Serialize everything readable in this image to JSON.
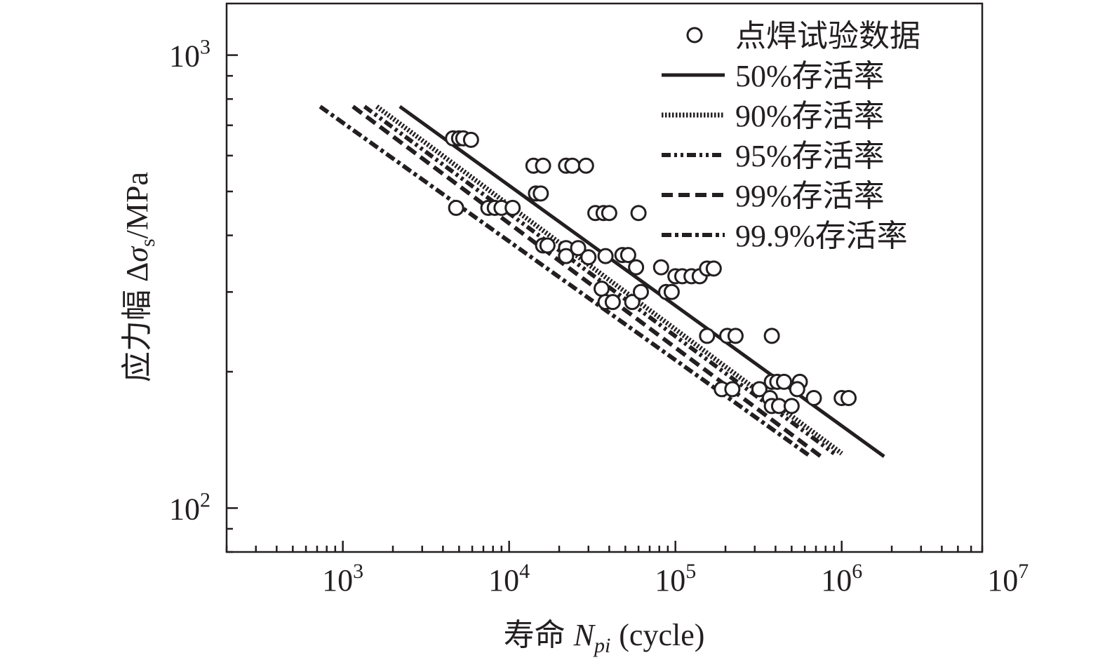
{
  "chart_data": {
    "type": "scatter",
    "xlabel": "寿命",
    "xlabel_var": "N",
    "xlabel_sub": "pi",
    "xlabel_unit": "(cycle)",
    "ylabel_prefix": "应力幅 Δ",
    "ylabel_sigma": "σ",
    "ylabel_sub": "s",
    "ylabel_unit": "/MPa",
    "x_scale": "log",
    "y_scale": "log",
    "xlim": [
      200,
      7000000
    ],
    "ylim": [
      80,
      1300
    ],
    "x_ticks": [
      {
        "value": 1000,
        "base": "10",
        "exp": "3"
      },
      {
        "value": 10000,
        "base": "10",
        "exp": "4"
      },
      {
        "value": 100000,
        "base": "10",
        "exp": "5"
      },
      {
        "value": 1000000,
        "base": "10",
        "exp": "6"
      },
      {
        "value": 10000000,
        "base": "10",
        "exp": "7"
      }
    ],
    "y_ticks": [
      {
        "value": 100,
        "base": "10",
        "exp": "2"
      },
      {
        "value": 1000,
        "base": "10",
        "exp": "3"
      }
    ],
    "grid": false,
    "legend_position": "top-right",
    "scatter_series": {
      "name": "点焊试验数据",
      "points": [
        [
          4600,
          655
        ],
        [
          5000,
          655
        ],
        [
          5300,
          655
        ],
        [
          5900,
          650
        ],
        [
          4800,
          460
        ],
        [
          7500,
          460
        ],
        [
          8200,
          460
        ],
        [
          9000,
          460
        ],
        [
          10500,
          460
        ],
        [
          14000,
          570
        ],
        [
          16000,
          570
        ],
        [
          22000,
          570
        ],
        [
          24000,
          570
        ],
        [
          29000,
          570
        ],
        [
          14500,
          495
        ],
        [
          15500,
          495
        ],
        [
          16000,
          380
        ],
        [
          17000,
          380
        ],
        [
          22000,
          375
        ],
        [
          26000,
          375
        ],
        [
          22000,
          360
        ],
        [
          30000,
          358
        ],
        [
          33000,
          448
        ],
        [
          37000,
          448
        ],
        [
          40000,
          448
        ],
        [
          60000,
          448
        ],
        [
          38000,
          360
        ],
        [
          48000,
          362
        ],
        [
          52000,
          362
        ],
        [
          58000,
          340
        ],
        [
          36000,
          305
        ],
        [
          38000,
          285
        ],
        [
          42000,
          285
        ],
        [
          55000,
          285
        ],
        [
          62000,
          300
        ],
        [
          82000,
          340
        ],
        [
          88000,
          300
        ],
        [
          95000,
          300
        ],
        [
          100000,
          325
        ],
        [
          110000,
          325
        ],
        [
          125000,
          325
        ],
        [
          140000,
          325
        ],
        [
          155000,
          338
        ],
        [
          170000,
          338
        ],
        [
          155000,
          240
        ],
        [
          205000,
          240
        ],
        [
          230000,
          240
        ],
        [
          380000,
          240
        ],
        [
          190000,
          183
        ],
        [
          220000,
          183
        ],
        [
          320000,
          183
        ],
        [
          370000,
          175
        ],
        [
          380000,
          190
        ],
        [
          410000,
          190
        ],
        [
          450000,
          190
        ],
        [
          560000,
          190
        ],
        [
          540000,
          183
        ],
        [
          380000,
          168
        ],
        [
          420000,
          168
        ],
        [
          500000,
          168
        ],
        [
          680000,
          175
        ],
        [
          1000000,
          175
        ],
        [
          1100000,
          175
        ]
      ]
    },
    "line_series": [
      {
        "name": "50%存活率",
        "style": "solid",
        "x": [
          2200,
          1800000
        ],
        "y": [
          770,
          130
        ]
      },
      {
        "name": "90%存活率",
        "style": "dotted",
        "x": [
          1600,
          1000000
        ],
        "y": [
          770,
          132
        ]
      },
      {
        "name": "95%存活率",
        "style": "dashdotdot",
        "x": [
          1350,
          900000
        ],
        "y": [
          770,
          132
        ]
      },
      {
        "name": "99%存活率",
        "style": "dashed",
        "x": [
          1150,
          750000
        ],
        "y": [
          770,
          130
        ]
      },
      {
        "name": "99.9%存活率",
        "style": "dashdot",
        "x": [
          730,
          650000
        ],
        "y": [
          770,
          130
        ]
      }
    ],
    "colors": {
      "ink": "#231f20",
      "marker_fill": "#ffffff"
    }
  }
}
